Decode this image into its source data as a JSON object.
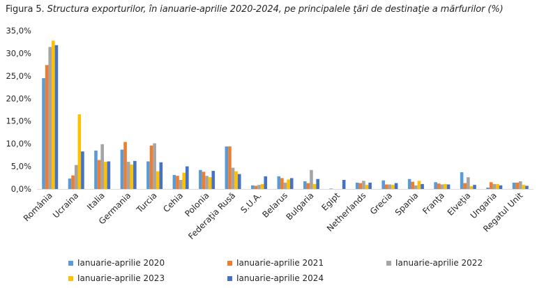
{
  "title": {
    "prefix": "Figura 5. ",
    "text": "Structura exporturilor, în ianuarie-aprilie 2020-2024, pe principalele ţări de destinaţie a mărfurilor (%)"
  },
  "colors": {
    "2020": "#5b9bd5",
    "2021": "#ed7d31",
    "2022": "#a5a5a5",
    "2023": "#ffc000",
    "2024": "#4472c4",
    "axis": "#d9d9d9",
    "text": "#262626"
  },
  "chart_data": {
    "type": "bar",
    "title": "Structura exporturilor, în ianuarie-aprilie 2020-2024, pe principalele ţări de destinaţie a mărfurilor (%)",
    "ylim": [
      0,
      35
    ],
    "yticks": [
      "0,0%",
      "5,0%",
      "10,0%",
      "15,0%",
      "20,0%",
      "25,0%",
      "30,0%",
      "35,0%"
    ],
    "ytick_values": [
      0,
      5,
      10,
      15,
      20,
      25,
      30,
      35
    ],
    "grid": false,
    "legend_position": "bottom",
    "categories": [
      "România",
      "Ucraina",
      "Italia",
      "Germania",
      "Turcia",
      "Cehia",
      "Polonia",
      "Federaţia Rusă",
      "S.U.A.",
      "Belarus",
      "Bulgaria",
      "Egipt",
      "Netherlands",
      "Grecia",
      "Spania",
      "Franţa",
      "Elveţia",
      "Ungaria",
      "Regatul Unit"
    ],
    "series": [
      {
        "name": "Ianuarie-aprilie 2020",
        "values": [
          24.5,
          2.3,
          8.5,
          8.7,
          6.1,
          3.1,
          4.2,
          9.4,
          0.8,
          2.8,
          1.7,
          0.1,
          1.4,
          1.9,
          2.2,
          1.5,
          3.7,
          0.3,
          1.4
        ]
      },
      {
        "name": "Ianuarie-aprilie 2021",
        "values": [
          27.4,
          3.0,
          6.4,
          10.4,
          9.6,
          2.9,
          3.8,
          9.4,
          0.7,
          2.4,
          1.3,
          0.0,
          1.3,
          1.0,
          1.6,
          1.2,
          1.3,
          1.5,
          1.4
        ]
      },
      {
        "name": "Ianuarie-aprilie 2022",
        "values": [
          31.4,
          5.3,
          9.9,
          6.0,
          10.1,
          2.0,
          2.9,
          4.7,
          0.9,
          1.4,
          4.2,
          0.0,
          1.8,
          1.0,
          0.8,
          1.0,
          2.6,
          1.1,
          1.7
        ]
      },
      {
        "name": "Ianuarie-aprilie 2023",
        "values": [
          32.8,
          16.5,
          6.0,
          5.4,
          3.9,
          3.6,
          2.6,
          3.9,
          1.1,
          2.1,
          1.1,
          0.0,
          0.9,
          0.9,
          1.8,
          1.1,
          0.6,
          1.1,
          0.9
        ]
      },
      {
        "name": "Ianuarie-aprilie 2024",
        "values": [
          31.8,
          8.3,
          6.1,
          6.2,
          5.9,
          5.0,
          4.0,
          3.3,
          2.8,
          2.4,
          2.2,
          2.0,
          1.4,
          1.3,
          1.1,
          1.0,
          0.9,
          0.8,
          0.7
        ]
      }
    ]
  }
}
